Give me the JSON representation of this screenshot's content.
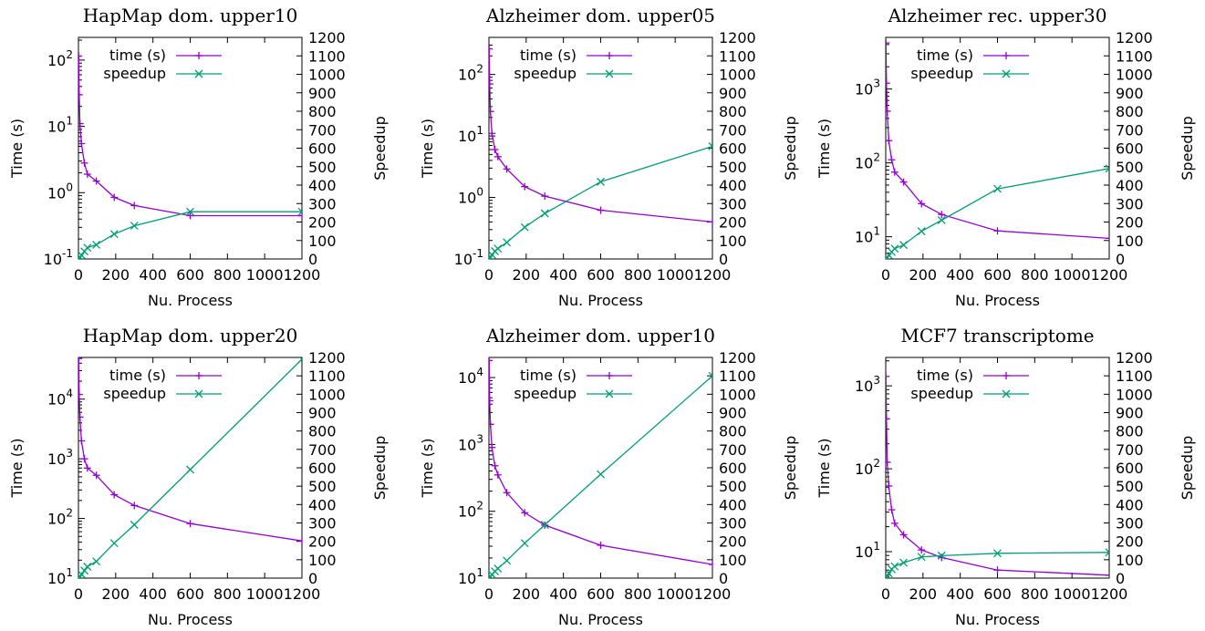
{
  "chart_data": [
    {
      "type": "line",
      "title": "HapMap dom. upper10",
      "xlabel": "Nu. Process",
      "ylabel": "Time (s)",
      "y2label": "Speedup",
      "x_ticks": [
        "0",
        "200",
        "400",
        "600",
        "800",
        "1000",
        "1200"
      ],
      "xlim": [
        0,
        1200
      ],
      "y_scale": "log",
      "y_ticks": [
        {
          "value": 0.1,
          "base": "10",
          "exp": "-1"
        },
        {
          "value": 1,
          "base": "10",
          "exp": "0"
        },
        {
          "value": 10,
          "base": "10",
          "exp": "1"
        },
        {
          "value": 100,
          "base": "10",
          "exp": "2"
        }
      ],
      "ylim": [
        0.1,
        220
      ],
      "y2_ticks": [
        "0",
        "100",
        "200",
        "300",
        "400",
        "500",
        "600",
        "700",
        "800",
        "900",
        "1000",
        "1100",
        "1200"
      ],
      "y2lim": [
        0,
        1200
      ],
      "legend_position": "top",
      "grid": false,
      "x": [
        1,
        4,
        8,
        16,
        32,
        48,
        96,
        192,
        300,
        600,
        1200
      ],
      "series": [
        {
          "name": "time (s)",
          "axis": "y",
          "color": "#9400d3",
          "marker": "plus",
          "values": [
            115,
            30,
            11,
            5.5,
            2.8,
            1.9,
            1.5,
            0.85,
            0.64,
            0.45,
            0.45
          ]
        },
        {
          "name": "speedup",
          "axis": "y2",
          "color": "#009e73",
          "marker": "x",
          "values": [
            1,
            4,
            10,
            21,
            41,
            61,
            77,
            135,
            180,
            256,
            256
          ]
        }
      ]
    },
    {
      "type": "line",
      "title": "Alzheimer dom. upper05",
      "xlabel": "Nu. Process",
      "ylabel": "Time (s)",
      "y2label": "Speedup",
      "x_ticks": [
        "0",
        "200",
        "400",
        "600",
        "800",
        "1000",
        "1200"
      ],
      "xlim": [
        0,
        1200
      ],
      "y_scale": "log",
      "y_ticks": [
        {
          "value": 0.1,
          "base": "10",
          "exp": "-1"
        },
        {
          "value": 1,
          "base": "10",
          "exp": "0"
        },
        {
          "value": 10,
          "base": "10",
          "exp": "1"
        },
        {
          "value": 100,
          "base": "10",
          "exp": "2"
        }
      ],
      "ylim": [
        0.1,
        400
      ],
      "y2_ticks": [
        "0",
        "100",
        "200",
        "300",
        "400",
        "500",
        "600",
        "700",
        "800",
        "900",
        "1000",
        "1100",
        "1200"
      ],
      "y2lim": [
        0,
        1200
      ],
      "legend_position": "top",
      "grid": false,
      "x": [
        1,
        4,
        8,
        16,
        32,
        48,
        96,
        192,
        300,
        600,
        1200
      ],
      "series": [
        {
          "name": "time (s)",
          "axis": "y",
          "color": "#9400d3",
          "marker": "plus",
          "values": [
            260,
            70,
            25,
            11,
            6,
            4.6,
            2.9,
            1.5,
            1.05,
            0.62,
            0.4
          ]
        },
        {
          "name": "speedup",
          "axis": "y2",
          "color": "#009e73",
          "marker": "x",
          "values": [
            1,
            4,
            10,
            23,
            42,
            56,
            90,
            172,
            247,
            418,
            610
          ]
        }
      ]
    },
    {
      "type": "line",
      "title": "Alzheimer rec. upper30",
      "xlabel": "Nu. Process",
      "ylabel": "Time (s)",
      "y2label": "Speedup",
      "x_ticks": [
        "0",
        "200",
        "400",
        "600",
        "800",
        "1000",
        "1200"
      ],
      "xlim": [
        0,
        1200
      ],
      "y_scale": "log",
      "y_ticks": [
        {
          "value": 10,
          "base": "10",
          "exp": "1"
        },
        {
          "value": 100,
          "base": "10",
          "exp": "2"
        },
        {
          "value": 1000,
          "base": "10",
          "exp": "3"
        }
      ],
      "ylim": [
        5,
        5000
      ],
      "y2_ticks": [
        "0",
        "100",
        "200",
        "300",
        "400",
        "500",
        "600",
        "700",
        "800",
        "900",
        "1000",
        "1100",
        "1200"
      ],
      "y2lim": [
        0,
        1200
      ],
      "legend_position": "top",
      "grid": false,
      "x": [
        1,
        4,
        8,
        16,
        32,
        48,
        96,
        192,
        300,
        600,
        1200
      ],
      "series": [
        {
          "name": "time (s)",
          "axis": "y",
          "color": "#9400d3",
          "marker": "plus",
          "values": [
            4200,
            1200,
            500,
            200,
            110,
            75,
            55,
            28,
            20,
            12,
            9.5
          ]
        },
        {
          "name": "speedup",
          "axis": "y2",
          "color": "#009e73",
          "marker": "x",
          "values": [
            1,
            4,
            8,
            21,
            38,
            56,
            76,
            150,
            210,
            380,
            490
          ]
        }
      ]
    },
    {
      "type": "line",
      "title": "HapMap dom. upper20",
      "xlabel": "Nu. Process",
      "ylabel": "Time (s)",
      "y2label": "Speedup",
      "x_ticks": [
        "0",
        "200",
        "400",
        "600",
        "800",
        "1000",
        "1200"
      ],
      "xlim": [
        0,
        1200
      ],
      "y_scale": "log",
      "y_ticks": [
        {
          "value": 10,
          "base": "10",
          "exp": "1"
        },
        {
          "value": 100,
          "base": "10",
          "exp": "2"
        },
        {
          "value": 1000,
          "base": "10",
          "exp": "3"
        },
        {
          "value": 10000,
          "base": "10",
          "exp": "4"
        }
      ],
      "ylim": [
        10,
        50000
      ],
      "y2_ticks": [
        "0",
        "100",
        "200",
        "300",
        "400",
        "500",
        "600",
        "700",
        "800",
        "900",
        "1000",
        "1100",
        "1200"
      ],
      "y2lim": [
        0,
        1200
      ],
      "legend_position": "top",
      "grid": false,
      "x": [
        1,
        4,
        8,
        16,
        32,
        48,
        96,
        192,
        300,
        600,
        1200
      ],
      "series": [
        {
          "name": "time (s)",
          "axis": "y",
          "color": "#9400d3",
          "marker": "plus",
          "values": [
            48000,
            12000,
            5000,
            2000,
            1000,
            700,
            530,
            250,
            165,
            82,
            42
          ]
        },
        {
          "name": "speedup",
          "axis": "y2",
          "color": "#009e73",
          "marker": "x",
          "values": [
            1,
            4,
            9,
            21,
            41,
            62,
            91,
            190,
            290,
            590,
            1190
          ]
        }
      ]
    },
    {
      "type": "line",
      "title": "Alzheimer dom. upper10",
      "xlabel": "Nu. Process",
      "ylabel": "Time (s)",
      "y2label": "Speedup",
      "x_ticks": [
        "0",
        "200",
        "400",
        "600",
        "800",
        "1000",
        "1200"
      ],
      "xlim": [
        0,
        1200
      ],
      "y_scale": "log",
      "y_ticks": [
        {
          "value": 10,
          "base": "10",
          "exp": "1"
        },
        {
          "value": 100,
          "base": "10",
          "exp": "2"
        },
        {
          "value": 1000,
          "base": "10",
          "exp": "3"
        },
        {
          "value": 10000,
          "base": "10",
          "exp": "4"
        }
      ],
      "ylim": [
        10,
        20000
      ],
      "y2_ticks": [
        "0",
        "100",
        "200",
        "300",
        "400",
        "500",
        "600",
        "700",
        "800",
        "900",
        "1000",
        "1100",
        "1200"
      ],
      "y2lim": [
        0,
        1200
      ],
      "legend_position": "top",
      "grid": false,
      "x": [
        1,
        4,
        8,
        16,
        32,
        48,
        96,
        192,
        300,
        600,
        1200
      ],
      "series": [
        {
          "name": "time (s)",
          "axis": "y",
          "color": "#9400d3",
          "marker": "plus",
          "values": [
            18000,
            4500,
            2000,
            900,
            480,
            350,
            190,
            95,
            62,
            31,
            16
          ]
        },
        {
          "name": "speedup",
          "axis": "y2",
          "color": "#009e73",
          "marker": "x",
          "values": [
            1,
            4,
            9,
            20,
            37,
            52,
            95,
            190,
            290,
            565,
            1100
          ]
        }
      ]
    },
    {
      "type": "line",
      "title": "MCF7 transcriptome",
      "xlabel": "Nu. Process",
      "ylabel": "Time (s)",
      "y2label": "Speedup",
      "x_ticks": [
        "0",
        "200",
        "400",
        "600",
        "800",
        "1000",
        "1200"
      ],
      "xlim": [
        0,
        1200
      ],
      "y_scale": "log",
      "y_ticks": [
        {
          "value": 10,
          "base": "10",
          "exp": "1"
        },
        {
          "value": 100,
          "base": "10",
          "exp": "2"
        },
        {
          "value": 1000,
          "base": "10",
          "exp": "3"
        }
      ],
      "ylim": [
        4.8,
        2200
      ],
      "y2_ticks": [
        "0",
        "100",
        "200",
        "300",
        "400",
        "500",
        "600",
        "700",
        "800",
        "900",
        "1000",
        "1100",
        "1200"
      ],
      "y2lim": [
        0,
        1200
      ],
      "legend_position": "top",
      "grid": false,
      "x": [
        1,
        4,
        8,
        16,
        32,
        48,
        96,
        192,
        300,
        600,
        1200
      ],
      "series": [
        {
          "name": "time (s)",
          "axis": "y",
          "color": "#9400d3",
          "marker": "plus",
          "values": [
            1300,
            400,
            120,
            62,
            32,
            22,
            16,
            10.5,
            8.5,
            6,
            5.2
          ]
        },
        {
          "name": "speedup",
          "axis": "y2",
          "color": "#009e73",
          "marker": "x",
          "values": [
            1,
            4,
            12,
            26,
            48,
            64,
            84,
            115,
            122,
            135,
            140
          ]
        }
      ]
    }
  ]
}
